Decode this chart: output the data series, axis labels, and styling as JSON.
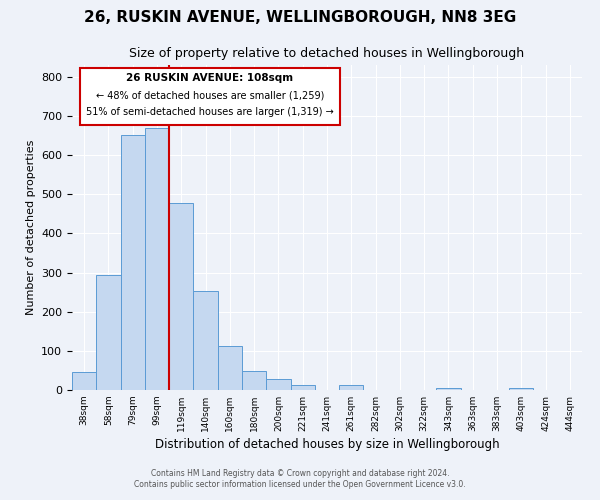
{
  "title": "26, RUSKIN AVENUE, WELLINGBOROUGH, NN8 3EG",
  "subtitle": "Size of property relative to detached houses in Wellingborough",
  "xlabel": "Distribution of detached houses by size in Wellingborough",
  "ylabel": "Number of detached properties",
  "bar_labels": [
    "38sqm",
    "58sqm",
    "79sqm",
    "99sqm",
    "119sqm",
    "140sqm",
    "160sqm",
    "180sqm",
    "200sqm",
    "221sqm",
    "241sqm",
    "261sqm",
    "282sqm",
    "302sqm",
    "322sqm",
    "343sqm",
    "363sqm",
    "383sqm",
    "403sqm",
    "424sqm",
    "444sqm"
  ],
  "bar_values": [
    47,
    293,
    651,
    668,
    478,
    253,
    113,
    49,
    28,
    14,
    0,
    14,
    0,
    0,
    0,
    6,
    0,
    0,
    6,
    0,
    0
  ],
  "bar_color": "#c5d8f0",
  "bar_edge_color": "#5b9bd5",
  "vline_x_idx": 4,
  "vline_color": "#cc0000",
  "annotation_line1": "26 RUSKIN AVENUE: 108sqm",
  "annotation_line2": "← 48% of detached houses are smaller (1,259)",
  "annotation_line3": "51% of semi-detached houses are larger (1,319) →",
  "annotation_box_color": "#cc0000",
  "footer_line1": "Contains HM Land Registry data © Crown copyright and database right 2024.",
  "footer_line2": "Contains public sector information licensed under the Open Government Licence v3.0.",
  "ylim": [
    0,
    830
  ],
  "background_color": "#eef2f9",
  "plot_bg_color": "#eef2f9",
  "grid_color": "#ffffff",
  "title_fontsize": 11,
  "subtitle_fontsize": 9
}
